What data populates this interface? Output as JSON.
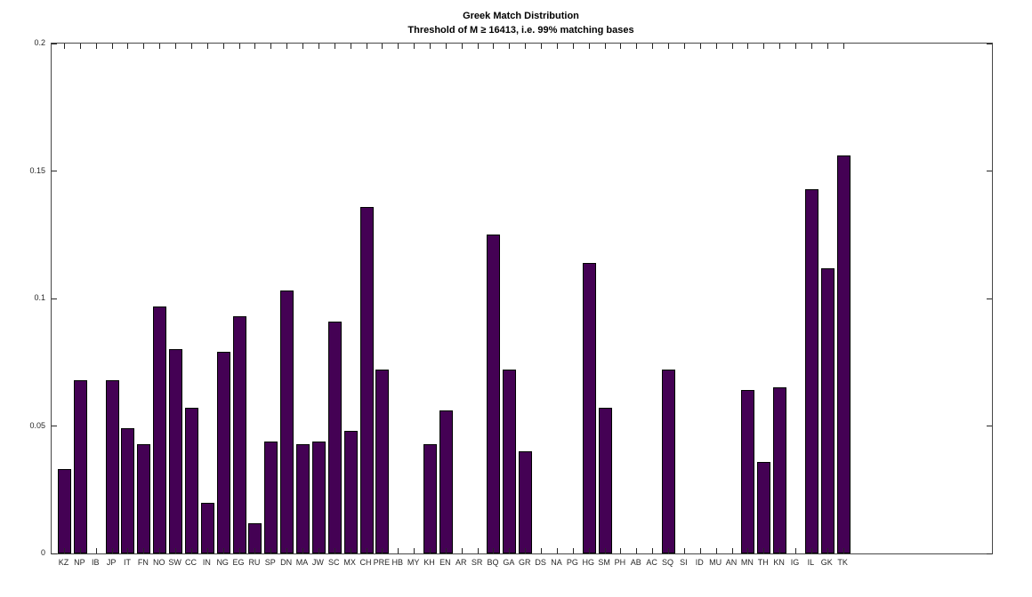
{
  "chart_data": {
    "type": "bar",
    "title": "Greek Match Distribution",
    "subtitle": "Threshold of M ≥ 16413, i.e. 99% matching bases",
    "categories": [
      "KZ",
      "NP",
      "IB",
      "JP",
      "IT",
      "FN",
      "NO",
      "SW",
      "CC",
      "IN",
      "NG",
      "EG",
      "RU",
      "SP",
      "DN",
      "MA",
      "JW",
      "SC",
      "MX",
      "CH",
      "PRE",
      "HB",
      "MY",
      "KH",
      "EN",
      "AR",
      "SR",
      "BQ",
      "GA",
      "GR",
      "DS",
      "NA",
      "PG",
      "HG",
      "SM",
      "PH",
      "AB",
      "AC",
      "SQ",
      "SI",
      "ID",
      "MU",
      "AN",
      "MN",
      "TH",
      "KN",
      "IG",
      "IL",
      "GK",
      "TK"
    ],
    "values": [
      0.033,
      0.068,
      0,
      0.068,
      0.049,
      0.043,
      0.097,
      0.08,
      0.057,
      0.02,
      0.079,
      0.093,
      0.012,
      0.044,
      0.103,
      0.043,
      0.044,
      0.091,
      0.048,
      0.136,
      0.072,
      0,
      0,
      0.043,
      0.056,
      0,
      0,
      0.125,
      0.072,
      0.04,
      0,
      0,
      0,
      0.114,
      0.057,
      0,
      0,
      0,
      0.072,
      0,
      0,
      0,
      0,
      0.064,
      0.036,
      0.065,
      0,
      0.143,
      0.112,
      0.156
    ],
    "xlabel": "",
    "ylabel": "",
    "ylim": [
      0,
      0.2
    ],
    "yticks": [
      {
        "value": 0,
        "label": "0"
      },
      {
        "value": 0.05,
        "label": "0.05"
      },
      {
        "value": 0.1,
        "label": "0.1"
      },
      {
        "value": 0.15,
        "label": "0.15"
      },
      {
        "value": 0.2,
        "label": "0.2"
      }
    ],
    "grid": false,
    "legend": false,
    "bar_color": "#440154",
    "bar_edge_color": "#000000",
    "axis_color": "#474747",
    "tick_color": "#262626",
    "background_color": "#ffffff"
  }
}
